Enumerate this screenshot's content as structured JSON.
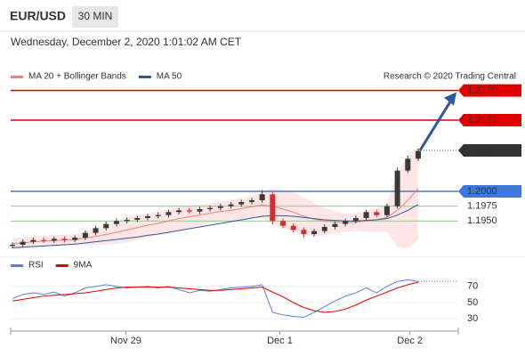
{
  "chart_data": {
    "type": "candlestick",
    "symbol": "EUR/USD",
    "interval": "30 MIN",
    "datetime": "Wednesday, December 2, 2020 1:01:02 AM CET",
    "credit": "Research © 2020 Trading Central",
    "ylim": [
      1.1895,
      1.218
    ],
    "up_color": "#3a3a3a",
    "down_color": "#d03030",
    "candles": {
      "open": [
        1.1908,
        1.191,
        1.1915,
        1.1918,
        1.1917,
        1.192,
        1.1918,
        1.1922,
        1.193,
        1.1938,
        1.1945,
        1.195,
        1.1952,
        1.1955,
        1.1958,
        1.196,
        1.1965,
        1.1968,
        1.1966,
        1.197,
        1.1972,
        1.1975,
        1.1978,
        1.1982,
        1.1985,
        1.1995,
        1.195,
        1.1942,
        1.1935,
        1.1928,
        1.1933,
        1.194,
        1.1945,
        1.195,
        1.1955,
        1.1965,
        1.196,
        1.1975,
        1.2035,
        1.2055
      ],
      "high": [
        1.1914,
        1.1919,
        1.1922,
        1.1922,
        1.1924,
        1.1924,
        1.1926,
        1.1934,
        1.1942,
        1.1949,
        1.1954,
        1.1956,
        1.1959,
        1.1962,
        1.1964,
        1.1969,
        1.1972,
        1.1972,
        1.1974,
        1.1976,
        1.1979,
        1.1982,
        1.1986,
        1.1989,
        1.2002,
        1.1999,
        1.1954,
        1.1946,
        1.1939,
        1.1937,
        1.1944,
        1.1949,
        1.1954,
        1.1959,
        1.1969,
        1.1969,
        1.1979,
        1.204,
        1.206,
        1.2072
      ],
      "low": [
        1.1904,
        1.1906,
        1.1911,
        1.1913,
        1.1913,
        1.1914,
        1.1914,
        1.1918,
        1.1926,
        1.1934,
        1.1941,
        1.1946,
        1.1948,
        1.1951,
        1.1954,
        1.1956,
        1.1961,
        1.1962,
        1.1962,
        1.1966,
        1.1968,
        1.1971,
        1.1974,
        1.1978,
        1.1981,
        1.1944,
        1.1938,
        1.1931,
        1.1922,
        1.1924,
        1.1929,
        1.1936,
        1.1941,
        1.1946,
        1.1951,
        1.1956,
        1.1956,
        1.1971,
        1.2031,
        1.2051
      ],
      "close": [
        1.191,
        1.1915,
        1.1918,
        1.1917,
        1.192,
        1.1918,
        1.1922,
        1.193,
        1.1938,
        1.1945,
        1.195,
        1.1952,
        1.1955,
        1.1958,
        1.196,
        1.1965,
        1.1968,
        1.1966,
        1.197,
        1.1972,
        1.1975,
        1.1978,
        1.1982,
        1.1985,
        1.1995,
        1.195,
        1.1942,
        1.1935,
        1.1928,
        1.1933,
        1.194,
        1.1945,
        1.195,
        1.1955,
        1.1965,
        1.196,
        1.1975,
        1.2035,
        1.2055,
        1.2068
      ]
    },
    "xticks": [
      {
        "value": 10.9,
        "label": "Nov 29"
      },
      {
        "value": 25.7,
        "label": "Dec 1"
      },
      {
        "value": 38.2,
        "label": "Dec 2"
      }
    ],
    "overlays": {
      "legend": [
        {
          "name": "MA 20 + Bollinger Bands",
          "color": "#f08080"
        },
        {
          "name": "MA 50",
          "color": "#2b5a9a"
        }
      ],
      "ma20": [
        1.1912,
        1.1913,
        1.1915,
        1.1916,
        1.1917,
        1.1918,
        1.1919,
        1.1921,
        1.1924,
        1.1927,
        1.1931,
        1.1935,
        1.1939,
        1.1943,
        1.1946,
        1.195,
        1.1954,
        1.1957,
        1.196,
        1.1963,
        1.1966,
        1.1968,
        1.1971,
        1.1974,
        1.1977,
        1.1975,
        1.197,
        1.1965,
        1.1958,
        1.1953,
        1.195,
        1.1948,
        1.1947,
        1.1948,
        1.195,
        1.1952,
        1.1956,
        1.1968,
        1.1985,
        1.2005
      ],
      "ma50": [
        1.1905,
        1.1906,
        1.1907,
        1.1908,
        1.1909,
        1.191,
        1.1911,
        1.1913,
        1.1915,
        1.1917,
        1.1919,
        1.1921,
        1.1923,
        1.1926,
        1.1928,
        1.1931,
        1.1934,
        1.1937,
        1.194,
        1.1943,
        1.1946,
        1.1949,
        1.1952,
        1.1955,
        1.1958,
        1.1959,
        1.1959,
        1.1958,
        1.1956,
        1.1954,
        1.1952,
        1.1951,
        1.195,
        1.195,
        1.1951,
        1.1952,
        1.1954,
        1.196,
        1.1968,
        1.1978
      ],
      "band_upper": [
        1.1922,
        1.1922,
        1.1924,
        1.1925,
        1.1926,
        1.1927,
        1.1928,
        1.1932,
        1.1938,
        1.1944,
        1.195,
        1.1956,
        1.196,
        1.1963,
        1.1966,
        1.197,
        1.1973,
        1.1976,
        1.1978,
        1.198,
        1.1983,
        1.1986,
        1.1989,
        1.1992,
        1.2,
        1.2005,
        1.2002,
        1.1998,
        1.199,
        1.198,
        1.1972,
        1.1966,
        1.1963,
        1.1963,
        1.1968,
        1.1972,
        1.198,
        1.203,
        1.206,
        1.2078
      ],
      "band_lower": [
        1.1902,
        1.1904,
        1.1906,
        1.1907,
        1.1908,
        1.1909,
        1.191,
        1.191,
        1.191,
        1.191,
        1.1912,
        1.1914,
        1.1918,
        1.1923,
        1.1926,
        1.193,
        1.1935,
        1.1938,
        1.1942,
        1.1946,
        1.1949,
        1.195,
        1.1953,
        1.1956,
        1.1954,
        1.1945,
        1.1938,
        1.1932,
        1.1926,
        1.1924,
        1.1926,
        1.193,
        1.1931,
        1.1933,
        1.1932,
        1.1932,
        1.1932,
        1.1906,
        1.1904,
        1.1918
      ],
      "band_color": "#ffd6d6"
    },
    "levels": [
      {
        "price": {
          "value": 1.217,
          "label": "1.2170"
        },
        "color": "#e00000",
        "style": "box"
      },
      {
        "price": {
          "value": 1.212,
          "label": "1.2120"
        },
        "color": "#e00000",
        "style": "box"
      },
      {
        "price": {
          "value": 1.2,
          "label": "1.2000"
        },
        "color": "#3d78d8",
        "style": "box"
      },
      {
        "price": 1.1975,
        "color": "#8fce8f",
        "style": "text"
      },
      {
        "price": {
          "value": 1.195,
          "label": "1.1950"
        },
        "color": "#8fce8f",
        "style": "text"
      }
    ],
    "last_price": 1.2069,
    "last_color": "#333333",
    "arrow_color": "#2b5a9a",
    "rsi": {
      "legend": [
        {
          "name": "RSI",
          "color": "#5b7fd6"
        },
        {
          "name": "9MA",
          "color": "#e00000"
        }
      ],
      "rsi": [
        55,
        60,
        62,
        60,
        63,
        58,
        62,
        68,
        70,
        72,
        70,
        68,
        69,
        70,
        68,
        70,
        66,
        62,
        65,
        64,
        66,
        68,
        69,
        70,
        72,
        38,
        35,
        33,
        32,
        38,
        45,
        52,
        58,
        62,
        68,
        62,
        70,
        76,
        78,
        76
      ],
      "ma9": [
        52,
        54,
        56,
        58,
        59,
        60,
        61,
        62,
        64,
        66,
        68,
        69,
        69,
        69,
        69,
        69,
        68,
        67,
        66,
        65,
        65,
        66,
        67,
        68,
        69,
        63,
        57,
        50,
        44,
        40,
        38,
        39,
        42,
        47,
        53,
        58,
        63,
        68,
        72,
        75
      ],
      "ylim": [
        15,
        85
      ],
      "yticks": [
        30,
        50,
        70
      ]
    }
  }
}
